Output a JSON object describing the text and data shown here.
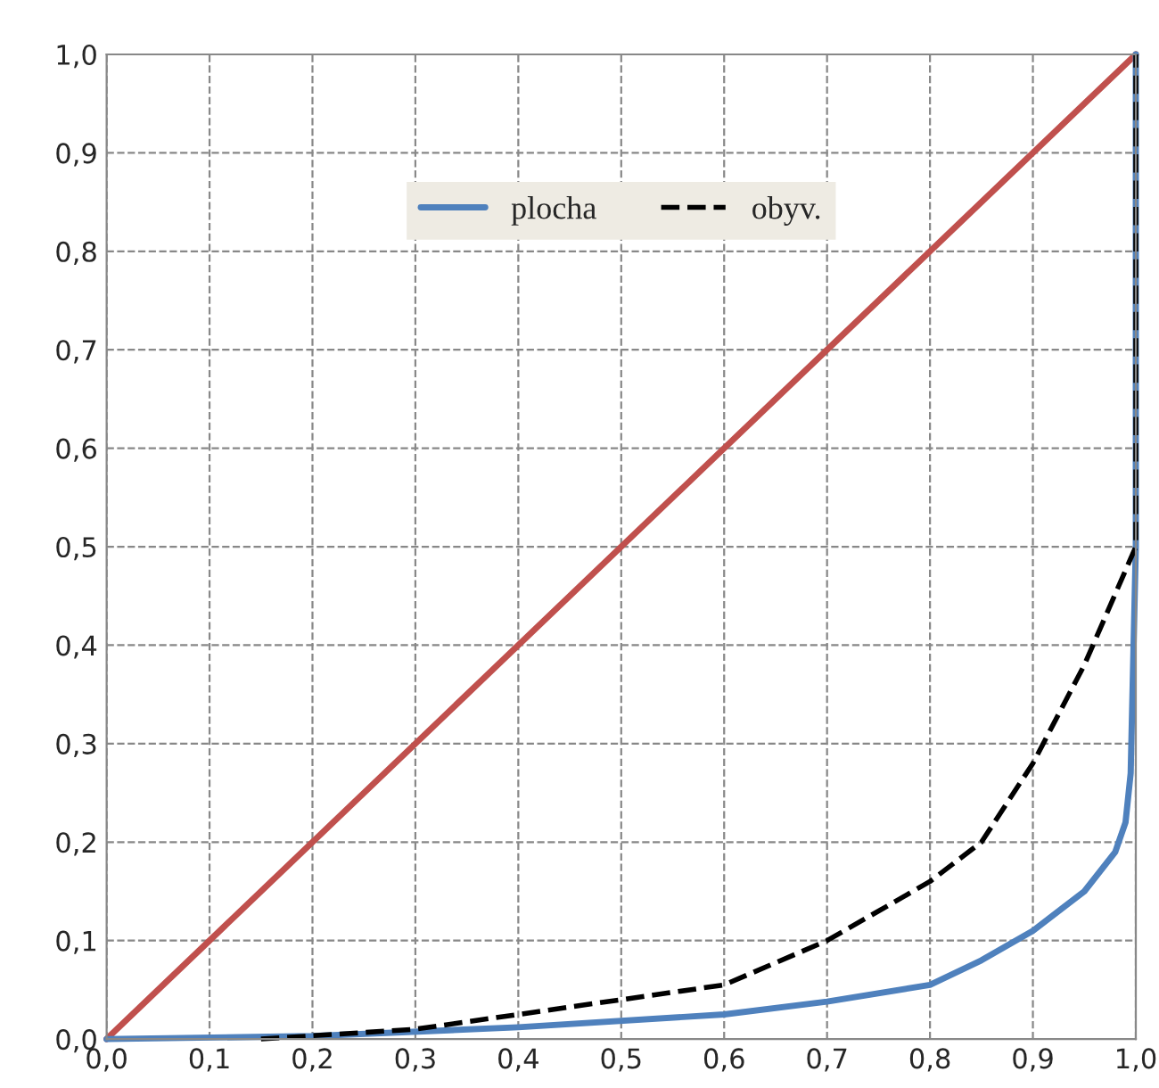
{
  "chart_data": {
    "type": "line",
    "xlim": [
      0,
      1
    ],
    "ylim": [
      0,
      1
    ],
    "xticks": [
      {
        "value": 0,
        "label": "0,0"
      },
      {
        "value": 0.1,
        "label": "0,1"
      },
      {
        "value": 0.2,
        "label": "0,2"
      },
      {
        "value": 0.3,
        "label": "0,3"
      },
      {
        "value": 0.4,
        "label": "0,4"
      },
      {
        "value": 0.5,
        "label": "0,5"
      },
      {
        "value": 0.6,
        "label": "0,6"
      },
      {
        "value": 0.7,
        "label": "0,7"
      },
      {
        "value": 0.8,
        "label": "0,8"
      },
      {
        "value": 0.9,
        "label": "0,9"
      },
      {
        "value": 1,
        "label": "1,0"
      }
    ],
    "yticks": [
      {
        "value": 0,
        "label": "0,0"
      },
      {
        "value": 0.1,
        "label": "0,1"
      },
      {
        "value": 0.2,
        "label": "0,2"
      },
      {
        "value": 0.3,
        "label": "0,3"
      },
      {
        "value": 0.4,
        "label": "0,4"
      },
      {
        "value": 0.5,
        "label": "0,5"
      },
      {
        "value": 0.6,
        "label": "0,6"
      },
      {
        "value": 0.7,
        "label": "0,7"
      },
      {
        "value": 0.8,
        "label": "0,8"
      },
      {
        "value": 0.9,
        "label": "0,9"
      },
      {
        "value": 1,
        "label": "1,0"
      }
    ],
    "grid": true,
    "legend": "top",
    "marker": "none",
    "series": [
      {
        "color": "#c0504d",
        "line_style": "solid",
        "x": [
          0,
          1
        ],
        "values": [
          0,
          1
        ]
      },
      {
        "name": "plocha",
        "color": "#4f81bd",
        "line_style": "solid",
        "x": [
          0,
          0.2,
          0.4,
          0.6,
          0.7,
          0.8,
          0.85,
          0.9,
          0.95,
          0.98,
          0.99,
          0.995,
          1,
          1
        ],
        "values": [
          0,
          0.003,
          0.012,
          0.025,
          0.038,
          0.055,
          0.08,
          0.11,
          0.15,
          0.19,
          0.22,
          0.27,
          0.5,
          1
        ]
      },
      {
        "name": "obyv.",
        "color": "#000000",
        "line_style": "dashed",
        "x": [
          0.15,
          0.3,
          0.4,
          0.6,
          0.7,
          0.8,
          0.85,
          0.9,
          0.95,
          1,
          1
        ],
        "values": [
          0,
          0.01,
          0.025,
          0.055,
          0.1,
          0.16,
          0.2,
          0.28,
          0.38,
          0.5,
          1
        ]
      }
    ]
  }
}
